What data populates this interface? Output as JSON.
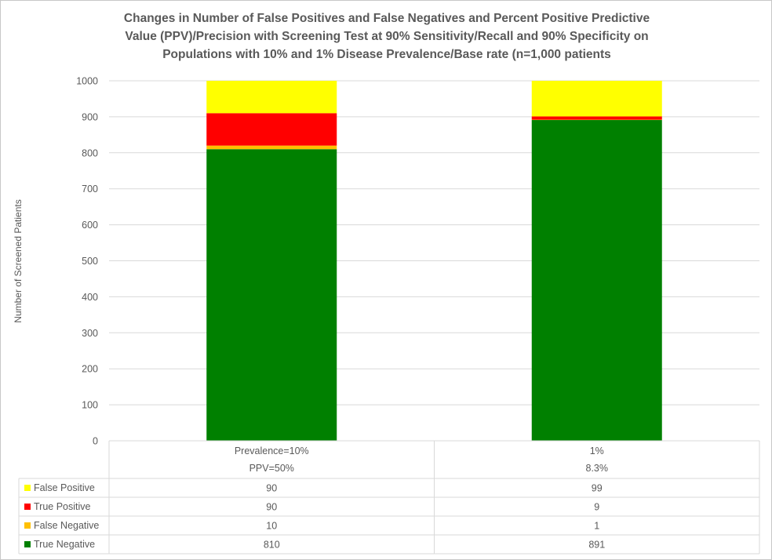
{
  "chart_data": {
    "type": "bar",
    "stacked": true,
    "title_lines": [
      "Changes in Number of False Positives and False Negatives and Percent Positive Predictive",
      "Value (PPV)/Precision with  Screening Test at 90% Sensitivity/Recall and 90% Specificity on",
      "Populations with 10% and 1% Disease Prevalence/Base rate (n=1,000 patients"
    ],
    "xlabel": "",
    "ylabel": "Number of Screened Patients",
    "ylim": [
      0,
      1000
    ],
    "yticks": [
      "0",
      "100",
      "200",
      "300",
      "400",
      "500",
      "600",
      "700",
      "800",
      "900",
      "1000"
    ],
    "grid": true,
    "legend": "data-table",
    "categories": [
      {
        "line1": "Prevalence=10%",
        "line2": "PPV=50%"
      },
      {
        "line1": "1%",
        "line2": "8.3%"
      }
    ],
    "series": [
      {
        "name": "True Negative",
        "color": "#008000",
        "values": [
          810,
          891
        ]
      },
      {
        "name": "False Negative",
        "color": "#ffc000",
        "values": [
          10,
          1
        ]
      },
      {
        "name": "True Positive",
        "color": "#ff0000",
        "values": [
          90,
          9
        ]
      },
      {
        "name": "False Positive",
        "color": "#ffff00",
        "values": [
          90,
          99
        ]
      }
    ],
    "table_row_order": [
      "False Positive",
      "True Positive",
      "False Negative",
      "True Negative"
    ]
  }
}
